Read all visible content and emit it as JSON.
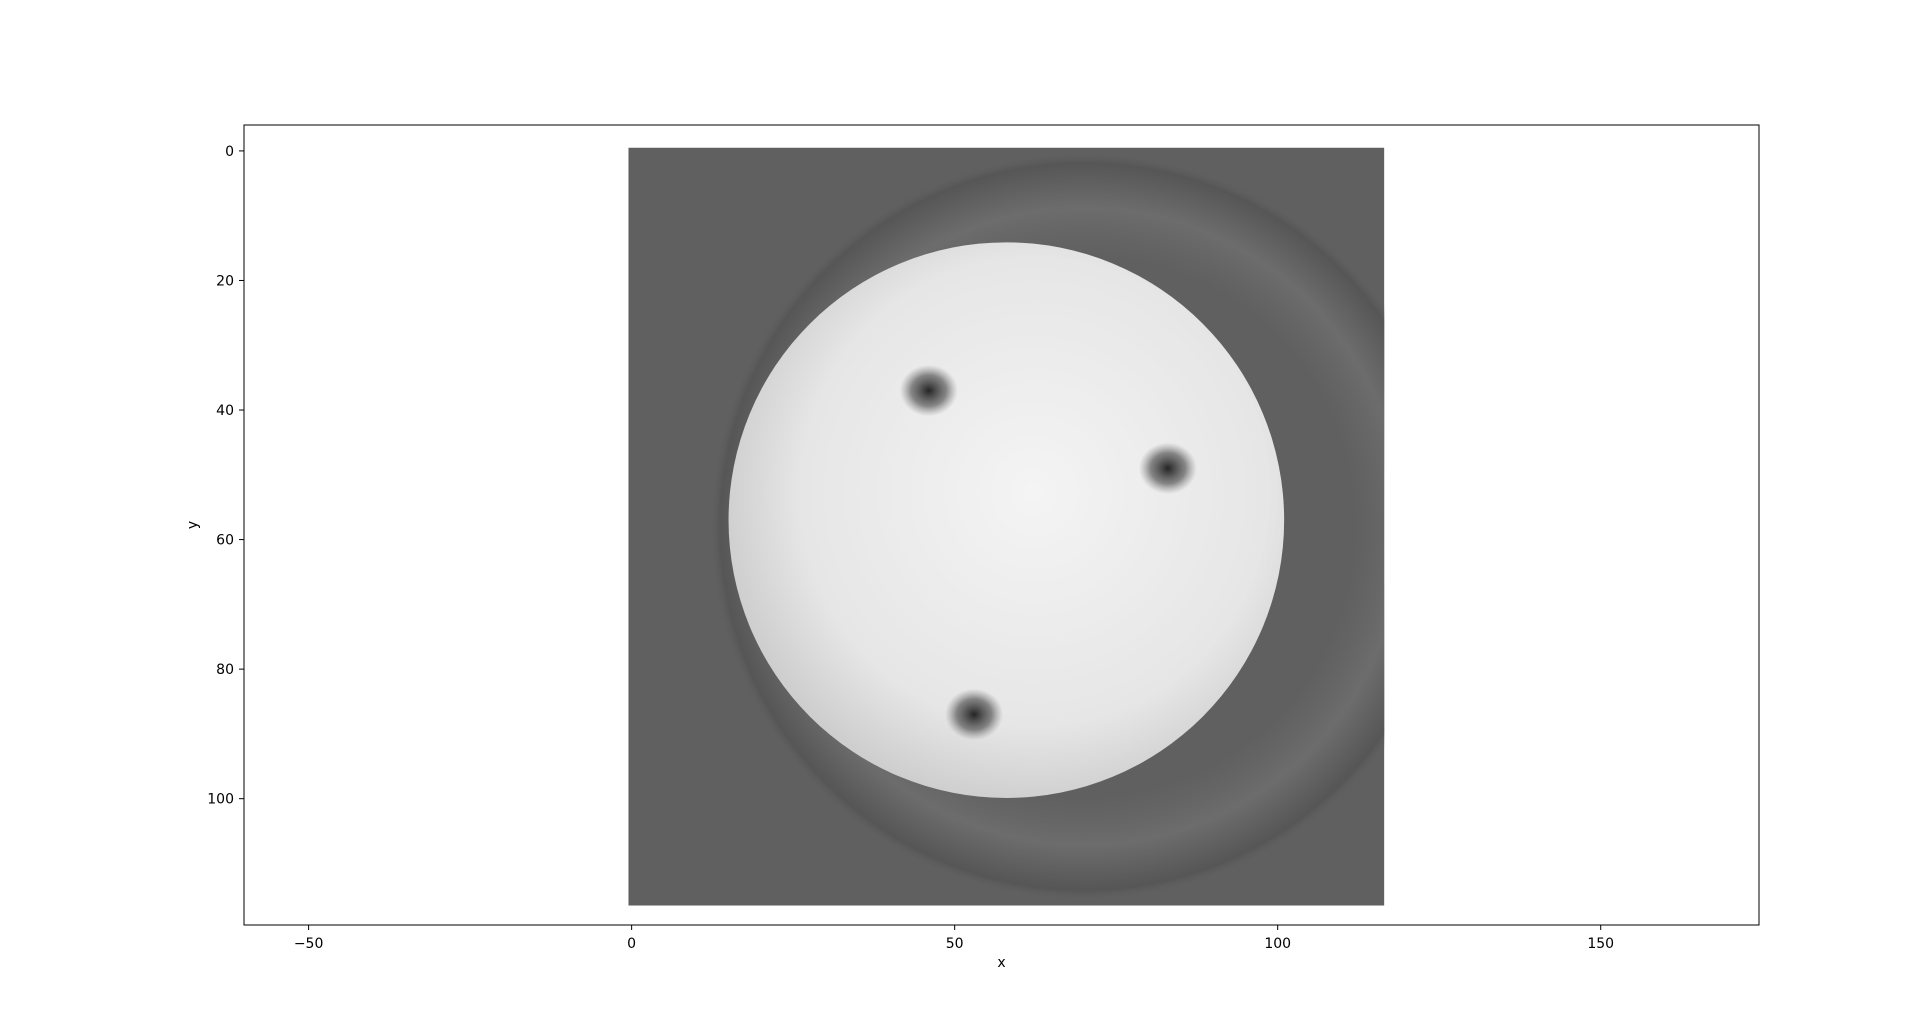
{
  "chart_data": {
    "type": "heatmap",
    "colormap": "gray",
    "xlabel": "x",
    "ylabel": "y",
    "xlim": [
      -60,
      174.5
    ],
    "ylim": [
      119.5,
      -4
    ],
    "xticks": [
      -50,
      0,
      50,
      100,
      150
    ],
    "yticks": [
      0,
      20,
      40,
      60,
      80,
      100
    ],
    "xtick_labels": [
      "−50",
      "0",
      "50",
      "100",
      "150"
    ],
    "ytick_labels": [
      "0",
      "20",
      "40",
      "60",
      "80",
      "100"
    ],
    "image_extent": {
      "x": [
        -0.5,
        116.5
      ],
      "y": [
        -0.5,
        116.5
      ]
    },
    "colors": {
      "background": "#606060",
      "disk_center": "#f4f4f4",
      "disk_edge": "#c8c8c8",
      "ring": "#555555",
      "feature_dark": "#1a1a1a"
    },
    "disk": {
      "cx": 58,
      "cy": 57,
      "r": 43
    },
    "outer_ring": {
      "cx": 70,
      "cy": 58,
      "r": 58
    },
    "features": [
      {
        "id": "feature-top-left",
        "cx": 46,
        "cy": 37
      },
      {
        "id": "feature-right",
        "cx": 83,
        "cy": 49
      },
      {
        "id": "feature-bottom",
        "cx": 53,
        "cy": 87
      }
    ]
  }
}
